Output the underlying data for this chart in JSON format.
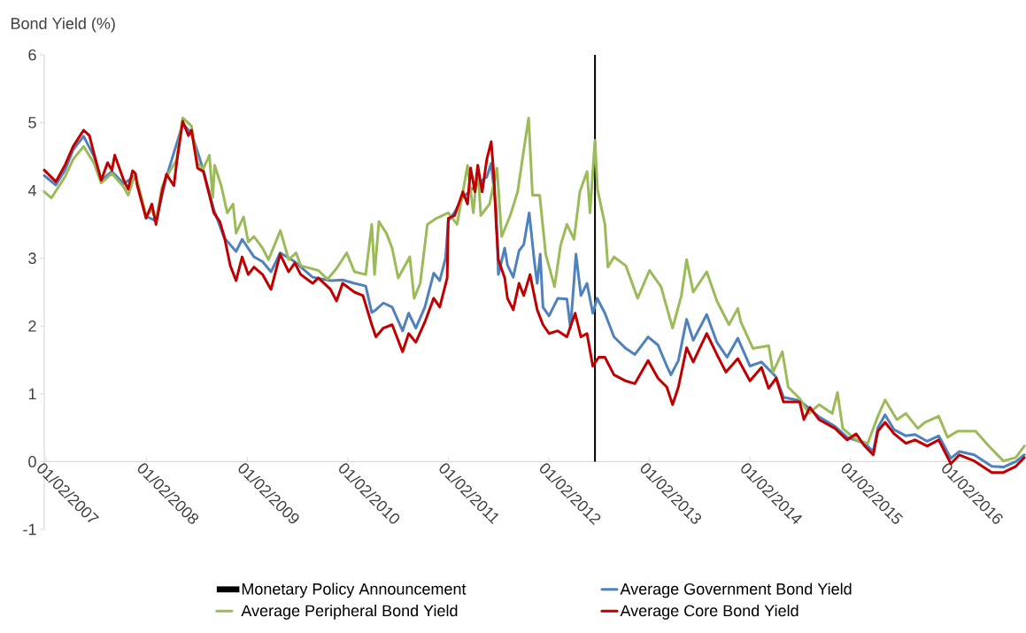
{
  "chart_data": {
    "type": "line",
    "ylabel": "Bond Yield (%)",
    "xlim": [
      "2007-01-25",
      "2016-10-28"
    ],
    "xticks": [
      {
        "value": "2007-02-01",
        "label": "01/02/2007"
      },
      {
        "value": "2008-02-01",
        "label": "01/02/2008"
      },
      {
        "value": "2009-02-01",
        "label": "01/02/2009"
      },
      {
        "value": "2010-02-01",
        "label": "01/02/2010"
      },
      {
        "value": "2011-02-01",
        "label": "01/02/2011"
      },
      {
        "value": "2012-02-01",
        "label": "01/02/2012"
      },
      {
        "value": "2013-02-01",
        "label": "01/02/2013"
      },
      {
        "value": "2014-02-01",
        "label": "01/02/2014"
      },
      {
        "value": "2015-02-01",
        "label": "01/02/2015"
      },
      {
        "value": "2016-02-01",
        "label": "01/02/2016"
      }
    ],
    "ylim": [
      -1,
      6
    ],
    "yticks": [
      -1,
      0,
      1,
      2,
      3,
      4,
      5,
      6
    ],
    "legend": "bottom",
    "series": [
      {
        "name": "Monetary Policy Announcement",
        "type": "bar",
        "color": "#000000",
        "x": [
          "2012-07-18"
        ],
        "values": [
          6
        ]
      },
      {
        "name": "Average Government Bond Yield",
        "color": "#4f81bd",
        "x": [
          "2007-01-25",
          "2007-03-08",
          "2007-04-10",
          "2007-05-10",
          "2007-06-17",
          "2007-07-25",
          "2007-08-20",
          "2007-09-28",
          "2007-11-10",
          "2007-12-22",
          "2008-01-30",
          "2008-03-06",
          "2008-04-13",
          "2008-06-11",
          "2008-07-13",
          "2008-08-25",
          "2008-10-02",
          "2008-11-09",
          "2008-12-22",
          "2009-01-13",
          "2009-02-25",
          "2009-03-28",
          "2009-04-28",
          "2009-05-31",
          "2009-07-23",
          "2009-09-26",
          "2009-11-30",
          "2010-01-13",
          "2010-02-25",
          "2010-04-07",
          "2010-04-29",
          "2010-05-14",
          "2010-06-10",
          "2010-07-12",
          "2010-08-19",
          "2010-09-10",
          "2010-10-06",
          "2010-11-08",
          "2010-12-10",
          "2011-01-01",
          "2011-01-22",
          "2011-02-01",
          "2011-02-24",
          "2011-03-26",
          "2011-04-23",
          "2011-05-19",
          "2011-06-21",
          "2011-07-07",
          "2011-07-25",
          "2011-08-02",
          "2011-08-25",
          "2011-09-04",
          "2011-09-25",
          "2011-10-16",
          "2011-11-02",
          "2011-11-22",
          "2011-12-10",
          "2011-12-21",
          "2012-01-01",
          "2012-01-11",
          "2012-02-02",
          "2012-03-05",
          "2012-04-07",
          "2012-04-20",
          "2012-05-10",
          "2012-05-28",
          "2012-06-19",
          "2012-07-10",
          "2012-07-26",
          "2012-08-23",
          "2012-09-25",
          "2012-11-07",
          "2012-12-10",
          "2013-01-27",
          "2013-03-04",
          "2013-04-05",
          "2013-04-20",
          "2013-05-17",
          "2013-06-16",
          "2013-07-10",
          "2013-08-28",
          "2013-10-04",
          "2013-11-10",
          "2013-12-19",
          "2014-02-01",
          "2014-03-15",
          "2014-05-07",
          "2014-06-03",
          "2014-08-01",
          "2014-10-10",
          "2014-12-07",
          "2015-01-20",
          "2015-03-25",
          "2015-04-25",
          "2015-05-12",
          "2015-06-07",
          "2015-07-10",
          "2015-08-22",
          "2015-09-24",
          "2015-11-07",
          "2015-12-19",
          "2016-02-01",
          "2016-03-03",
          "2016-04-26",
          "2016-06-29",
          "2016-08-10",
          "2016-09-24",
          "2016-10-25"
        ],
        "values": [
          4.22,
          4.08,
          4.3,
          4.6,
          4.8,
          4.5,
          4.15,
          4.28,
          4.1,
          4.22,
          3.62,
          3.55,
          4.2,
          4.98,
          4.85,
          4.3,
          3.72,
          3.3,
          3.1,
          3.28,
          3.02,
          2.95,
          2.8,
          3.08,
          2.95,
          2.72,
          2.67,
          2.68,
          2.63,
          2.59,
          2.2,
          2.24,
          2.34,
          2.28,
          1.93,
          2.19,
          1.97,
          2.28,
          2.78,
          2.67,
          3.0,
          3.55,
          3.68,
          3.9,
          4.0,
          4.1,
          4.2,
          4.4,
          3.7,
          2.76,
          3.15,
          2.9,
          2.72,
          3.11,
          3.2,
          3.67,
          2.98,
          2.63,
          3.06,
          2.28,
          2.15,
          2.41,
          2.4,
          1.97,
          3.06,
          2.45,
          2.63,
          2.19,
          2.41,
          2.19,
          1.84,
          1.67,
          1.58,
          1.84,
          1.72,
          1.41,
          1.28,
          1.49,
          2.1,
          1.79,
          2.17,
          1.76,
          1.54,
          1.82,
          1.41,
          1.47,
          1.25,
          0.95,
          0.9,
          0.66,
          0.52,
          0.36,
          0.27,
          0.15,
          0.5,
          0.69,
          0.47,
          0.38,
          0.4,
          0.3,
          0.38,
          0.05,
          0.15,
          0.1,
          -0.07,
          -0.08,
          0.0,
          0.1
        ]
      },
      {
        "name": "Average Peripheral Bond Yield",
        "color": "#9bbb59",
        "x": [
          "2007-01-25",
          "2007-02-20",
          "2007-04-10",
          "2007-05-10",
          "2007-06-17",
          "2007-07-25",
          "2007-08-20",
          "2007-09-28",
          "2007-11-10",
          "2007-11-26",
          "2007-12-22",
          "2008-01-30",
          "2008-02-20",
          "2008-03-06",
          "2008-03-28",
          "2008-04-13",
          "2008-05-20",
          "2008-06-11",
          "2008-07-13",
          "2008-08-04",
          "2008-08-25",
          "2008-09-16",
          "2008-09-28",
          "2008-10-05",
          "2008-10-29",
          "2008-11-20",
          "2008-12-11",
          "2008-12-22",
          "2009-01-18",
          "2009-02-04",
          "2009-02-25",
          "2009-03-28",
          "2009-04-19",
          "2009-06-01",
          "2009-07-01",
          "2009-07-28",
          "2009-08-14",
          "2009-10-17",
          "2009-11-19",
          "2009-12-22",
          "2010-01-28",
          "2010-02-25",
          "2010-04-07",
          "2010-04-29",
          "2010-05-09",
          "2010-05-25",
          "2010-06-21",
          "2010-07-12",
          "2010-08-03",
          "2010-09-14",
          "2010-09-30",
          "2010-10-22",
          "2010-11-17",
          "2010-12-20",
          "2011-02-01",
          "2011-03-05",
          "2011-04-12",
          "2011-05-03",
          "2011-05-19",
          "2011-05-30",
          "2011-07-01",
          "2011-07-28",
          "2011-08-14",
          "2011-09-14",
          "2011-10-11",
          "2011-11-02",
          "2011-11-20",
          "2011-12-04",
          "2011-12-30",
          "2012-01-21",
          "2012-02-22",
          "2012-03-15",
          "2012-04-07",
          "2012-05-03",
          "2012-05-24",
          "2012-06-19",
          "2012-06-30",
          "2012-07-18",
          "2012-07-27",
          "2012-08-23",
          "2012-09-03",
          "2012-09-25",
          "2012-11-07",
          "2012-12-20",
          "2013-02-01",
          "2013-03-15",
          "2013-04-26",
          "2013-05-28",
          "2013-06-16",
          "2013-07-10",
          "2013-08-28",
          "2013-10-04",
          "2013-11-17",
          "2013-12-19",
          "2013-12-30",
          "2014-02-12",
          "2014-04-10",
          "2014-04-26",
          "2014-05-30",
          "2014-06-20",
          "2014-08-01",
          "2014-09-03",
          "2014-10-10",
          "2014-11-27",
          "2014-12-16",
          "2015-01-04",
          "2015-02-22",
          "2015-04-05",
          "2015-05-12",
          "2015-06-07",
          "2015-07-20",
          "2015-08-22",
          "2015-10-04",
          "2015-10-30",
          "2015-12-19",
          "2016-01-20",
          "2016-02-26",
          "2016-05-01",
          "2016-06-18",
          "2016-08-10",
          "2016-09-24",
          "2016-10-25"
        ],
        "values": [
          3.98,
          3.89,
          4.2,
          4.46,
          4.65,
          4.4,
          4.11,
          4.25,
          4.05,
          3.93,
          4.25,
          3.62,
          3.72,
          3.55,
          4.05,
          4.2,
          4.45,
          5.07,
          4.95,
          4.4,
          4.32,
          4.52,
          3.9,
          4.37,
          4.07,
          3.67,
          3.8,
          3.37,
          3.61,
          3.24,
          3.32,
          3.15,
          2.98,
          3.41,
          2.98,
          3.08,
          2.89,
          2.82,
          2.69,
          2.85,
          3.08,
          2.8,
          2.76,
          3.5,
          2.76,
          3.54,
          3.37,
          3.15,
          2.71,
          3.02,
          2.41,
          2.63,
          3.5,
          3.59,
          3.67,
          3.5,
          4.37,
          3.67,
          4.37,
          3.63,
          3.8,
          4.33,
          3.32,
          3.63,
          3.98,
          4.59,
          5.07,
          3.93,
          3.93,
          3.06,
          2.58,
          3.19,
          3.5,
          3.28,
          3.98,
          4.28,
          3.67,
          4.74,
          4.02,
          3.5,
          2.87,
          3.02,
          2.89,
          2.41,
          2.82,
          2.58,
          1.97,
          2.45,
          2.98,
          2.5,
          2.8,
          2.37,
          2.02,
          2.26,
          2.06,
          1.67,
          1.71,
          1.32,
          1.62,
          1.1,
          0.93,
          0.71,
          0.84,
          0.71,
          1.02,
          0.49,
          0.32,
          0.27,
          0.67,
          0.91,
          0.62,
          0.71,
          0.49,
          0.58,
          0.67,
          0.36,
          0.45,
          0.45,
          0.23,
          0.01,
          0.06,
          0.23
        ]
      },
      {
        "name": "Average Core Bond Yield",
        "color": "#c00000",
        "x": [
          "2007-01-25",
          "2007-03-08",
          "2007-04-10",
          "2007-05-10",
          "2007-06-17",
          "2007-07-08",
          "2007-07-25",
          "2007-08-20",
          "2007-09-12",
          "2007-09-28",
          "2007-10-08",
          "2007-11-10",
          "2007-11-26",
          "2007-12-12",
          "2007-12-22",
          "2007-12-28",
          "2008-01-30",
          "2008-02-20",
          "2008-03-06",
          "2008-03-28",
          "2008-04-13",
          "2008-05-10",
          "2008-05-20",
          "2008-06-11",
          "2008-07-02",
          "2008-07-13",
          "2008-08-04",
          "2008-08-25",
          "2008-09-16",
          "2008-10-02",
          "2008-10-24",
          "2008-11-09",
          "2008-12-01",
          "2008-12-22",
          "2009-01-13",
          "2009-02-04",
          "2009-02-25",
          "2009-03-28",
          "2009-04-28",
          "2009-05-31",
          "2009-07-01",
          "2009-07-23",
          "2009-08-14",
          "2009-09-26",
          "2009-10-17",
          "2009-11-30",
          "2009-12-22",
          "2010-01-13",
          "2010-02-25",
          "2010-03-28",
          "2010-04-29",
          "2010-05-14",
          "2010-06-10",
          "2010-07-12",
          "2010-08-19",
          "2010-09-10",
          "2010-10-06",
          "2010-11-08",
          "2010-12-10",
          "2011-01-01",
          "2011-01-28",
          "2011-02-01",
          "2011-02-24",
          "2011-03-26",
          "2011-04-12",
          "2011-04-23",
          "2011-05-09",
          "2011-05-19",
          "2011-06-04",
          "2011-06-21",
          "2011-07-07",
          "2011-07-17",
          "2011-07-25",
          "2011-08-02",
          "2011-08-25",
          "2011-09-04",
          "2011-09-25",
          "2011-10-16",
          "2011-11-02",
          "2011-11-25",
          "2011-12-21",
          "2012-01-11",
          "2012-02-02",
          "2012-03-05",
          "2012-04-07",
          "2012-05-07",
          "2012-05-28",
          "2012-06-19",
          "2012-07-10",
          "2012-08-01",
          "2012-08-23",
          "2012-09-25",
          "2012-11-07",
          "2012-12-10",
          "2013-01-27",
          "2013-03-04",
          "2013-04-05",
          "2013-04-26",
          "2013-05-17",
          "2013-06-16",
          "2013-07-10",
          "2013-08-28",
          "2013-10-04",
          "2013-11-06",
          "2013-12-19",
          "2014-02-01",
          "2014-03-15",
          "2014-04-10",
          "2014-05-07",
          "2014-06-03",
          "2014-08-01",
          "2014-08-16",
          "2014-09-07",
          "2014-10-10",
          "2014-12-07",
          "2015-01-20",
          "2015-02-22",
          "2015-03-25",
          "2015-04-25",
          "2015-05-12",
          "2015-06-07",
          "2015-07-10",
          "2015-08-22",
          "2015-09-24",
          "2015-11-07",
          "2015-12-19",
          "2016-02-01",
          "2016-03-03",
          "2016-04-26",
          "2016-06-29",
          "2016-08-10",
          "2016-09-24",
          "2016-10-25"
        ],
        "values": [
          4.3,
          4.13,
          4.37,
          4.65,
          4.89,
          4.81,
          4.54,
          4.15,
          4.41,
          4.3,
          4.52,
          4.15,
          4.02,
          4.29,
          4.25,
          4.09,
          3.59,
          3.8,
          3.5,
          3.98,
          4.24,
          4.07,
          4.41,
          5.02,
          4.81,
          4.89,
          4.33,
          4.28,
          3.93,
          3.67,
          3.54,
          3.32,
          2.89,
          2.67,
          3.02,
          2.76,
          2.87,
          2.76,
          2.54,
          3.06,
          2.8,
          2.93,
          2.76,
          2.63,
          2.71,
          2.54,
          2.37,
          2.63,
          2.5,
          2.45,
          2.02,
          1.84,
          1.97,
          2.02,
          1.62,
          1.89,
          1.76,
          2.06,
          2.41,
          2.28,
          2.71,
          3.59,
          3.63,
          3.98,
          3.8,
          4.33,
          3.98,
          4.37,
          3.98,
          4.46,
          4.72,
          4.2,
          3.5,
          2.98,
          2.71,
          2.41,
          2.24,
          2.63,
          2.45,
          2.76,
          2.24,
          2.02,
          1.89,
          1.93,
          1.84,
          2.19,
          1.84,
          1.89,
          1.41,
          1.54,
          1.54,
          1.28,
          1.19,
          1.15,
          1.49,
          1.23,
          1.1,
          0.84,
          1.1,
          1.68,
          1.47,
          1.89,
          1.58,
          1.32,
          1.52,
          1.19,
          1.39,
          1.08,
          1.23,
          0.88,
          0.88,
          0.62,
          0.8,
          0.62,
          0.49,
          0.32,
          0.41,
          0.23,
          0.1,
          0.45,
          0.58,
          0.41,
          0.27,
          0.32,
          0.23,
          0.32,
          -0.03,
          0.1,
          0.01,
          -0.16,
          -0.16,
          -0.07,
          0.06
        ]
      }
    ]
  }
}
